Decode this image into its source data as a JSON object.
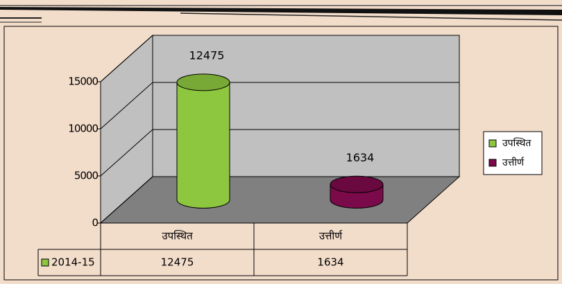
{
  "chart_data": {
    "type": "bar3d",
    "categories": [
      "उपस्थित",
      "उत्तीर्ण"
    ],
    "series": [
      {
        "name": "2014-15",
        "color": "#8dc63f",
        "values": [
          12475,
          1634
        ]
      }
    ],
    "point_colors": [
      "#8dc63f",
      "#7b0a4a"
    ],
    "ylim": [
      0,
      15000
    ],
    "yticks": [
      0,
      5000,
      10000,
      15000
    ],
    "grid": true,
    "legend": "right"
  }
}
